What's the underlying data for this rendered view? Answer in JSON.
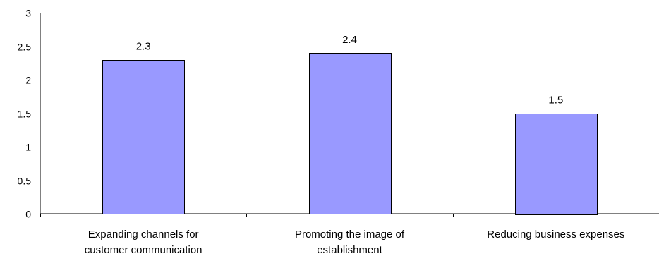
{
  "chart_data": {
    "type": "bar",
    "categories": [
      [
        "Expanding channels for",
        "customer communication"
      ],
      [
        "Promoting the image of",
        "establishment"
      ],
      [
        "Reducing business expenses"
      ]
    ],
    "values": [
      2.3,
      2.4,
      1.5
    ],
    "data_labels": [
      "2.3",
      "2.4",
      "1.5"
    ],
    "ylim": [
      0,
      3
    ],
    "yticks": [
      "0",
      "0.5",
      "1",
      "1.5",
      "2",
      "2.5",
      "3"
    ],
    "title": "",
    "xlabel": "",
    "ylabel": "",
    "grid": false,
    "bar_color": "#9999ff",
    "bar_edge_color": "#000000"
  }
}
